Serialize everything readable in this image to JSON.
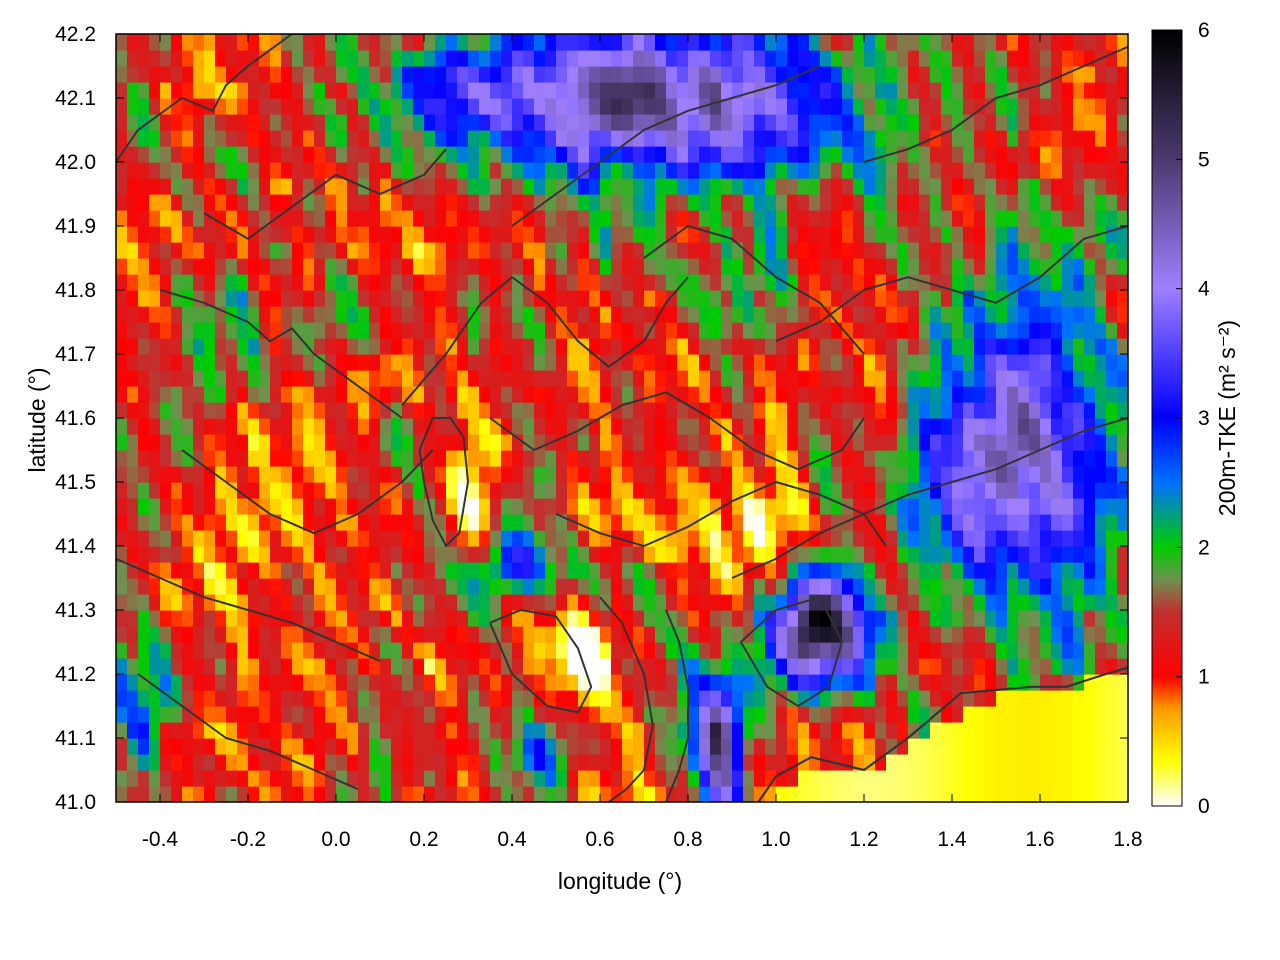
{
  "chart_data": {
    "type": "heatmap",
    "xlabel": "longitude (°)",
    "ylabel": "latitude (°)",
    "colorbar_label": "200m-TKE (m² s⁻²)",
    "xlim": [
      -0.5,
      1.8
    ],
    "ylim": [
      41.0,
      42.2
    ],
    "clim": [
      0,
      6
    ],
    "x_ticks": [
      -0.4,
      -0.2,
      0.0,
      0.2,
      0.4,
      0.6,
      0.8,
      1.0,
      1.2,
      1.4,
      1.6,
      1.8
    ],
    "x_tick_labels": [
      "-0.4",
      "-0.2",
      "0.0",
      "0.2",
      "0.4",
      "0.6",
      "0.8",
      "1.0",
      "1.2",
      "1.4",
      "1.6",
      "1.8"
    ],
    "y_ticks": [
      41.0,
      41.1,
      41.2,
      41.3,
      41.4,
      41.5,
      41.6,
      41.7,
      41.8,
      41.9,
      42.0,
      42.1,
      42.2
    ],
    "y_tick_labels": [
      "41.0",
      "41.1",
      "41.2",
      "41.3",
      "41.4",
      "41.5",
      "41.6",
      "41.7",
      "41.8",
      "41.9",
      "42.0",
      "42.1",
      "42.2"
    ],
    "colorbar_ticks": [
      0,
      1,
      2,
      3,
      4,
      5,
      6
    ],
    "colorbar_tick_labels": [
      "0",
      "1",
      "2",
      "3",
      "4",
      "5",
      "6"
    ],
    "colormap": [
      {
        "value": 0.0,
        "color": "#ffffff"
      },
      {
        "value": 0.35,
        "color": "#ffff00"
      },
      {
        "value": 0.75,
        "color": "#ff9900"
      },
      {
        "value": 1.0,
        "color": "#ff0000"
      },
      {
        "value": 1.5,
        "color": "#c03030"
      },
      {
        "value": 1.75,
        "color": "#709050"
      },
      {
        "value": 2.0,
        "color": "#00cc00"
      },
      {
        "value": 2.5,
        "color": "#0070ff"
      },
      {
        "value": 3.0,
        "color": "#0000ff"
      },
      {
        "value": 4.0,
        "color": "#9f7fff"
      },
      {
        "value": 5.0,
        "color": "#4b3a6e"
      },
      {
        "value": 6.0,
        "color": "#000000"
      }
    ],
    "field_regions": [
      {
        "lon": -0.15,
        "lat": 41.72,
        "sx": 0.22,
        "sy": 0.08,
        "tke": 0.6
      },
      {
        "lon": 0.28,
        "lat": 41.48,
        "sx": 0.05,
        "sy": 0.09,
        "tke": -1.0
      },
      {
        "lon": 0.55,
        "lat": 41.24,
        "sx": 0.11,
        "sy": 0.06,
        "tke": -1.1
      },
      {
        "lon": 0.2,
        "lat": 41.97,
        "sx": 0.16,
        "sy": 0.07,
        "tke": 0.4
      },
      {
        "lon": 1.0,
        "lat": 41.42,
        "sx": 0.14,
        "sy": 0.06,
        "tke": -0.7
      },
      {
        "lon": 0.82,
        "lat": 41.83,
        "sx": 0.35,
        "sy": 0.1,
        "tke": 0.35
      },
      {
        "lon": 0.72,
        "lat": 42.1,
        "sx": 0.5,
        "sy": 0.12,
        "tke": 3.8
      },
      {
        "lon": 1.55,
        "lat": 41.55,
        "sx": 0.22,
        "sy": 0.26,
        "tke": 3.3
      },
      {
        "lon": 1.1,
        "lat": 41.27,
        "sx": 0.12,
        "sy": 0.09,
        "tke": 4.8
      },
      {
        "lon": 0.87,
        "lat": 41.1,
        "sx": 0.06,
        "sy": 0.1,
        "tke": 4.3
      },
      {
        "lon": 0.42,
        "lat": 41.37,
        "sx": 0.12,
        "sy": 0.05,
        "tke": 1.6
      },
      {
        "lon": 0.48,
        "lat": 41.08,
        "sx": 0.12,
        "sy": 0.06,
        "tke": 1.4
      },
      {
        "lon": -0.45,
        "lat": 41.15,
        "sx": 0.12,
        "sy": 0.1,
        "tke": 0.9
      },
      {
        "lon": 0.0,
        "lat": 42.1,
        "sx": 0.2,
        "sy": 0.08,
        "tke": 0.6
      }
    ],
    "low_tke_coastal_region": {
      "coast_lon": [
        0.96,
        1.1,
        1.2,
        1.35,
        1.5,
        1.62,
        1.75,
        1.8
      ],
      "coast_lat": [
        41.0,
        41.07,
        41.05,
        41.12,
        41.17,
        41.18,
        41.2,
        41.2
      ],
      "tke": 0.3
    },
    "coastline": {
      "lon": [
        0.96,
        1.0,
        1.08,
        1.2,
        1.3,
        1.42,
        1.58,
        1.66,
        1.75,
        1.8
      ],
      "lat": [
        41.0,
        41.04,
        41.07,
        41.05,
        41.1,
        41.17,
        41.18,
        41.18,
        41.2,
        41.21
      ]
    },
    "contours": [
      {
        "lon": [
          -0.5,
          -0.45,
          -0.35,
          -0.28,
          -0.25,
          -0.2,
          -0.1,
          -0.05
        ],
        "lat": [
          42.0,
          42.05,
          42.1,
          42.08,
          42.12,
          42.15,
          42.2,
          42.2
        ]
      },
      {
        "lon": [
          -0.3,
          -0.2,
          -0.1,
          0.0,
          0.1,
          0.2,
          0.25
        ],
        "lat": [
          41.92,
          41.88,
          41.93,
          41.98,
          41.95,
          41.98,
          42.02
        ]
      },
      {
        "lon": [
          -0.4,
          -0.3,
          -0.2,
          -0.15,
          -0.1,
          -0.05,
          0.05,
          0.15
        ],
        "lat": [
          41.8,
          41.78,
          41.75,
          41.72,
          41.74,
          41.7,
          41.65,
          41.6
        ]
      },
      {
        "lon": [
          -0.35,
          -0.25,
          -0.15,
          -0.05,
          0.05,
          0.15,
          0.22
        ],
        "lat": [
          41.55,
          41.5,
          41.45,
          41.42,
          41.45,
          41.5,
          41.55
        ]
      },
      {
        "lon": [
          -0.5,
          -0.4,
          -0.3,
          -0.2,
          -0.1,
          0.0,
          0.1
        ],
        "lat": [
          41.38,
          41.35,
          41.32,
          41.3,
          41.28,
          41.25,
          41.22
        ]
      },
      {
        "lon": [
          -0.45,
          -0.35,
          -0.25,
          -0.15,
          -0.05,
          0.05
        ],
        "lat": [
          41.2,
          41.15,
          41.1,
          41.08,
          41.05,
          41.02
        ]
      },
      {
        "lon": [
          0.19,
          0.2,
          0.22,
          0.25,
          0.28,
          0.3,
          0.29,
          0.26,
          0.22,
          0.19
        ],
        "lat": [
          41.55,
          41.5,
          41.44,
          41.4,
          41.42,
          41.5,
          41.57,
          41.6,
          41.6,
          41.55
        ]
      },
      {
        "lon": [
          0.15,
          0.25,
          0.33,
          0.4,
          0.48,
          0.55,
          0.62,
          0.7,
          0.75,
          0.8
        ],
        "lat": [
          41.62,
          41.7,
          41.78,
          41.82,
          41.78,
          41.72,
          41.68,
          41.72,
          41.78,
          41.82
        ]
      },
      {
        "lon": [
          0.35,
          0.45,
          0.55,
          0.65,
          0.75,
          0.85,
          0.95,
          1.05,
          1.15,
          1.2
        ],
        "lat": [
          41.6,
          41.55,
          41.58,
          41.62,
          41.64,
          41.6,
          41.55,
          41.52,
          41.55,
          41.6
        ]
      },
      {
        "lon": [
          0.5,
          0.6,
          0.7,
          0.8,
          0.9,
          1.0,
          1.1,
          1.2,
          1.25
        ],
        "lat": [
          41.45,
          41.42,
          41.4,
          41.43,
          41.47,
          41.5,
          41.48,
          41.45,
          41.4
        ]
      },
      {
        "lon": [
          0.35,
          0.42,
          0.5,
          0.55,
          0.58,
          0.55,
          0.48,
          0.4,
          0.35
        ],
        "lat": [
          41.28,
          41.3,
          41.29,
          41.24,
          41.18,
          41.14,
          41.15,
          41.2,
          41.28
        ]
      },
      {
        "lon": [
          0.6,
          0.65,
          0.7,
          0.72,
          0.7,
          0.66,
          0.62
        ],
        "lat": [
          41.32,
          41.28,
          41.2,
          41.12,
          41.05,
          41.02,
          41.0
        ]
      },
      {
        "lon": [
          0.75,
          0.78,
          0.8,
          0.8,
          0.78,
          0.75
        ],
        "lat": [
          41.3,
          41.25,
          41.18,
          41.1,
          41.05,
          41.0
        ]
      },
      {
        "lon": [
          0.9,
          1.0,
          1.1,
          1.2,
          1.3,
          1.4,
          1.5,
          1.6,
          1.7,
          1.8
        ],
        "lat": [
          41.35,
          41.38,
          41.42,
          41.45,
          41.48,
          41.5,
          41.52,
          41.55,
          41.58,
          41.6
        ]
      },
      {
        "lon": [
          1.0,
          1.1,
          1.2,
          1.3,
          1.4,
          1.5,
          1.6,
          1.7,
          1.8
        ],
        "lat": [
          41.72,
          41.75,
          41.8,
          41.82,
          41.8,
          41.78,
          41.82,
          41.88,
          41.9
        ]
      },
      {
        "lon": [
          1.2,
          1.3,
          1.4,
          1.5,
          1.6,
          1.7,
          1.8
        ],
        "lat": [
          42.0,
          42.02,
          42.05,
          42.1,
          42.12,
          42.15,
          42.18
        ]
      },
      {
        "lon": [
          0.4,
          0.5,
          0.6,
          0.7,
          0.8,
          0.9,
          1.0,
          1.1
        ],
        "lat": [
          41.9,
          41.95,
          42.0,
          42.05,
          42.08,
          42.1,
          42.12,
          42.15
        ]
      },
      {
        "lon": [
          0.92,
          1.0,
          1.1,
          1.15,
          1.12,
          1.05,
          0.98,
          0.92
        ],
        "lat": [
          41.25,
          41.3,
          41.32,
          41.25,
          41.18,
          41.15,
          41.18,
          41.25
        ]
      },
      {
        "lon": [
          0.7,
          0.8,
          0.9,
          1.0,
          1.1,
          1.2
        ],
        "lat": [
          41.85,
          41.9,
          41.88,
          41.82,
          41.78,
          41.7
        ]
      }
    ]
  }
}
